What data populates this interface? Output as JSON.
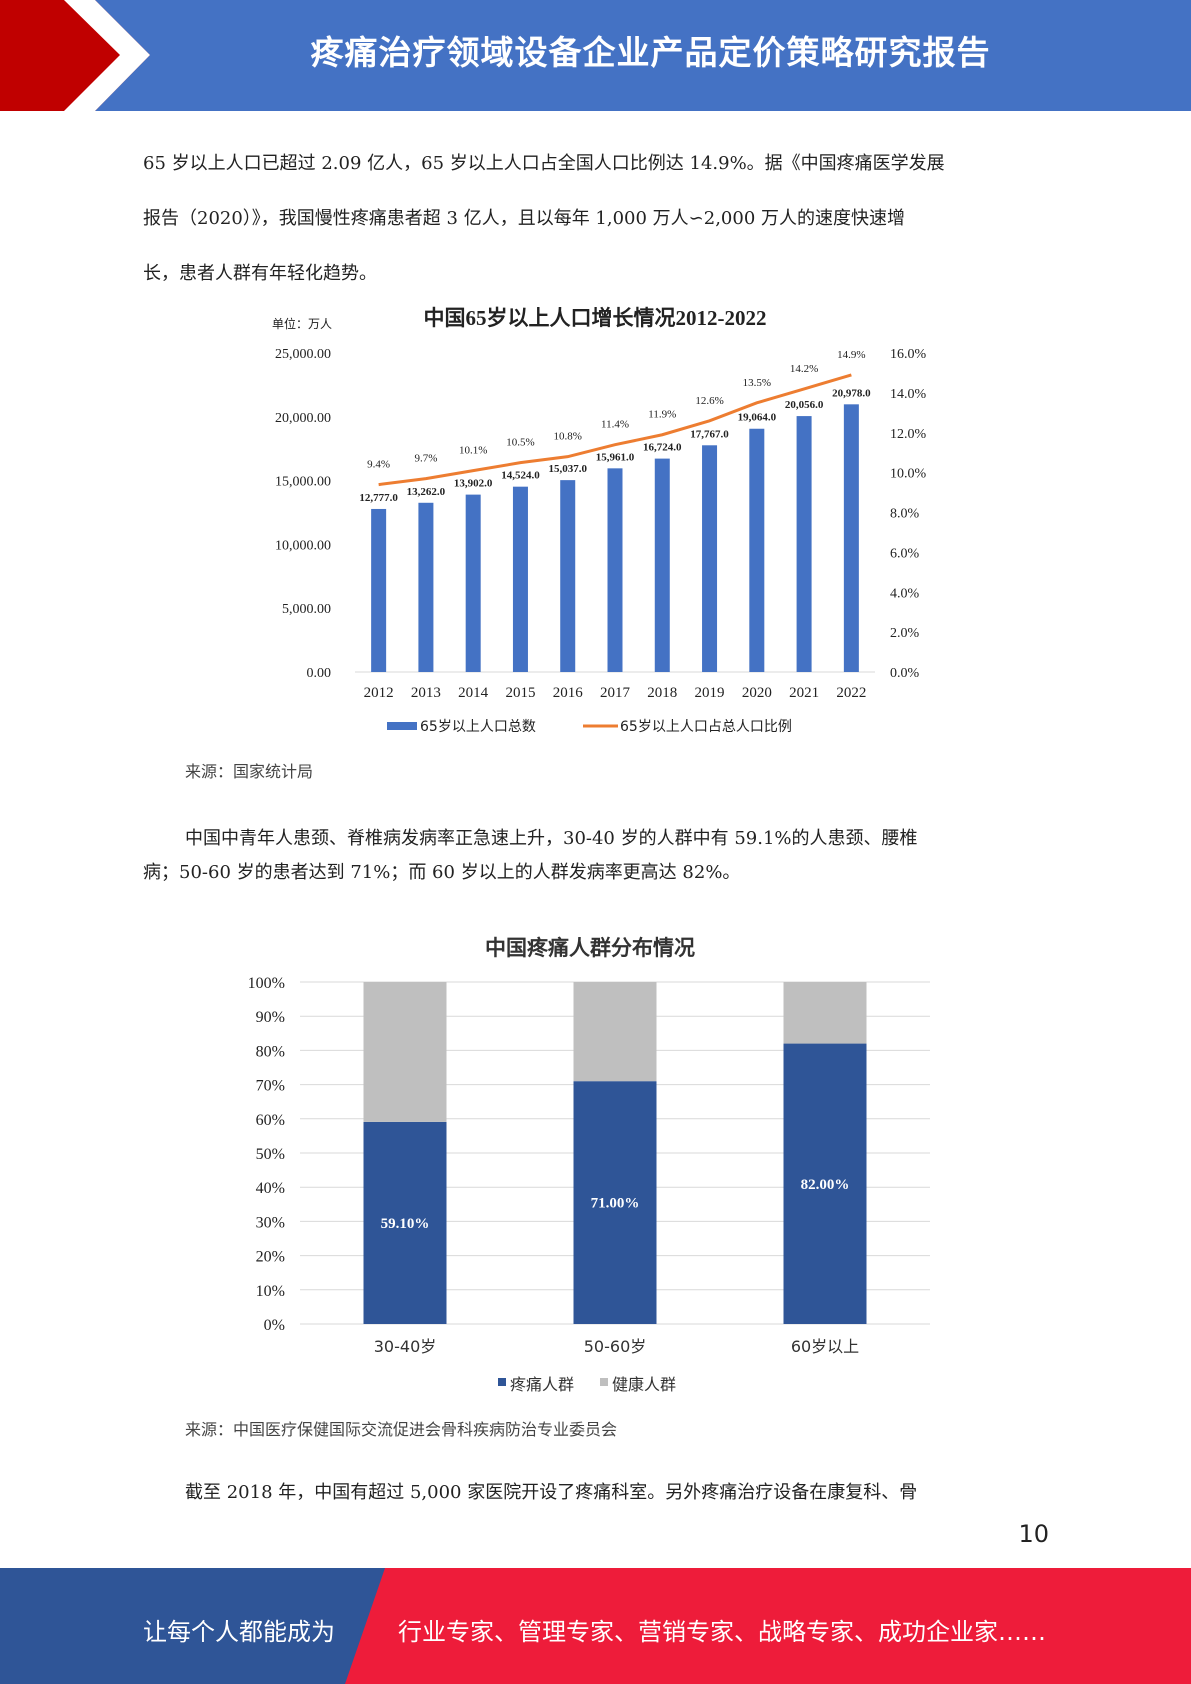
{
  "header": {
    "title": "疼痛治疗领域设备企业产品定价策略研究报告"
  },
  "paragraphs": {
    "p1_line1": "65 岁以上人口已超过 2.09 亿人，65 岁以上人口占全国人口比例达 14.9%。据《中国疼痛医学发展",
    "p1_line2": "报告（2020）》，我国慢性疼痛患者超 3 亿人，且以每年 1,000 万人∽2,000 万人的速度快速增",
    "p1_line3": "长，患者人群有年轻化趋势。",
    "p2_line1": "中国中青年人患颈、脊椎病发病率正急速上升，30-40 岁的人群中有 59.1%的人患颈、腰椎",
    "p2_line2": "病；50-60 岁的患者达到 71%；而 60 岁以上的人群发病率更高达 82%。",
    "p3_line1": "截至 2018 年，中国有超过 5,000 家医院开设了疼痛科室。另外疼痛治疗设备在康复科、骨"
  },
  "sources": {
    "chart1": "来源：国家统计局",
    "chart2": "来源：中国医疗保健国际交流促进会骨科疾病防治专业委员会"
  },
  "page_number": "10",
  "footer": {
    "left": "让每个人都能成为",
    "right": "行业专家、管理专家、营销专家、战略专家、成功企业家……"
  },
  "colors": {
    "header_blue": "#4472c4",
    "header_red": "#c00000",
    "bar_blue": "#4472c4",
    "line_orange": "#ed7d31",
    "stack_dark": "#2f5597",
    "stack_grey": "#bfbfbf",
    "footer_blue": "#2f5597",
    "footer_red": "#ee1c3a"
  },
  "chart_data": [
    {
      "type": "bar+line",
      "title": "中国65岁以上人口增长情况2012-2022",
      "unit_label": "单位：万人",
      "categories": [
        "2012",
        "2013",
        "2014",
        "2015",
        "2016",
        "2017",
        "2018",
        "2019",
        "2020",
        "2021",
        "2022"
      ],
      "series": [
        {
          "name": "65岁以上人口总数",
          "type": "bar",
          "axis": "left",
          "values": [
            12777.0,
            13262.0,
            13902.0,
            14524.0,
            15037.0,
            15961.0,
            16724.0,
            17767.0,
            19064.0,
            20056.0,
            20978.0
          ],
          "labels": [
            "12,777.0",
            "13,262.0",
            "13,902.0",
            "14,524.0",
            "15,037.0",
            "15,961.0",
            "16,724.0",
            "17,767.0",
            "19,064.0",
            "20,056.0",
            "20,978.0"
          ]
        },
        {
          "name": "65岁以上人口占总人口比例",
          "type": "line",
          "axis": "right",
          "values": [
            9.4,
            9.7,
            10.1,
            10.5,
            10.8,
            11.4,
            11.9,
            12.6,
            13.5,
            14.2,
            14.9
          ],
          "labels": [
            "9.4%",
            "9.7%",
            "10.1%",
            "10.5%",
            "10.8%",
            "11.4%",
            "11.9%",
            "12.6%",
            "13.5%",
            "14.2%",
            "14.9%"
          ]
        }
      ],
      "ylim": [
        0,
        25000
      ],
      "y_ticks": [
        "0.00",
        "5,000.00",
        "10,000.00",
        "15,000.00",
        "20,000.00",
        "25,000.00"
      ],
      "y2lim": [
        0,
        16
      ],
      "y2_ticks": [
        "0.0%",
        "2.0%",
        "4.0%",
        "6.0%",
        "8.0%",
        "10.0%",
        "12.0%",
        "14.0%",
        "16.0%"
      ],
      "legend_position": "bottom"
    },
    {
      "type": "stacked_bar",
      "title": "中国疼痛人群分布情况",
      "categories": [
        "30-40岁",
        "50-60岁",
        "60岁以上"
      ],
      "series": [
        {
          "name": "疼痛人群",
          "values": [
            59.1,
            71.0,
            82.0
          ],
          "labels": [
            "59.10%",
            "71.00%",
            "82.00%"
          ]
        },
        {
          "name": "健康人群",
          "values": [
            40.9,
            29.0,
            18.0
          ]
        }
      ],
      "ylim": [
        0,
        100
      ],
      "y_ticks": [
        "0%",
        "10%",
        "20%",
        "30%",
        "40%",
        "50%",
        "60%",
        "70%",
        "80%",
        "90%",
        "100%"
      ],
      "legend_position": "bottom"
    }
  ]
}
